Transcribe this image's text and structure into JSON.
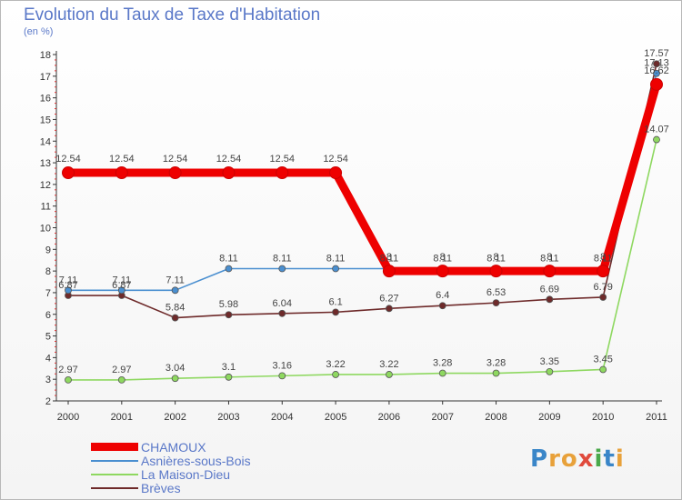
{
  "title": "Evolution du Taux de Taxe d'Habitation",
  "subtitle": "(en %)",
  "logo": {
    "text": "Proxiti",
    "letters": [
      {
        "ch": "P",
        "color": "#3a86c8"
      },
      {
        "ch": "r",
        "color": "#e8a13a"
      },
      {
        "ch": "o",
        "color": "#e8a13a"
      },
      {
        "ch": "x",
        "color": "#e04a3c"
      },
      {
        "ch": "i",
        "color": "#4aa84a"
      },
      {
        "ch": "t",
        "color": "#3a86c8"
      },
      {
        "ch": "i",
        "color": "#e8a13a"
      }
    ]
  },
  "chart_data": {
    "type": "line",
    "x": [
      "2000",
      "2001",
      "2002",
      "2003",
      "2004",
      "2005",
      "2006",
      "2007",
      "2008",
      "2009",
      "2010",
      "2011"
    ],
    "ylim": [
      2,
      18
    ],
    "yticks": [
      2,
      3,
      4,
      5,
      6,
      7,
      8,
      9,
      10,
      11,
      12,
      13,
      14,
      15,
      16,
      17,
      18
    ],
    "grid": false,
    "legend_position": "bottom-left",
    "series": [
      {
        "name": "CHAMOUX",
        "color": "#ee0000",
        "values": [
          12.54,
          12.54,
          12.54,
          12.54,
          12.54,
          12.54,
          8,
          8,
          8,
          8,
          8,
          16.62
        ],
        "labels": [
          "12.54",
          "12.54",
          "12.54",
          "12.54",
          "12.54",
          "12.54",
          "8",
          "8",
          "8",
          "8",
          "8",
          "16.62"
        ]
      },
      {
        "name": "Asnières-sous-Bois",
        "color": "#4a8fd0",
        "values": [
          7.11,
          7.11,
          7.11,
          8.11,
          8.11,
          8.11,
          8.11,
          8.11,
          8.11,
          8.11,
          8.11,
          17.13
        ],
        "labels": [
          "7.11",
          "7.11",
          "7.11",
          "8.11",
          "8.11",
          "8.11",
          "8.11",
          "8.11",
          "8.11",
          "8.11",
          "8.11",
          "17.13"
        ]
      },
      {
        "name": "La Maison-Dieu",
        "color": "#8ed860",
        "values": [
          2.97,
          2.97,
          3.04,
          3.1,
          3.16,
          3.22,
          3.22,
          3.28,
          3.28,
          3.35,
          3.45,
          14.07
        ],
        "labels": [
          "2.97",
          "2.97",
          "3.04",
          "3.1",
          "3.16",
          "3.22",
          "3.22",
          "3.28",
          "3.28",
          "3.35",
          "3.45",
          "14.07"
        ]
      },
      {
        "name": "Brèves",
        "color": "#6e2a2a",
        "values": [
          6.87,
          6.87,
          5.84,
          5.98,
          6.04,
          6.1,
          6.27,
          6.4,
          6.53,
          6.69,
          6.79,
          17.57
        ],
        "labels": [
          "6.87",
          "6.87",
          "5.84",
          "5.98",
          "6.04",
          "6.1",
          "6.27",
          "6.4",
          "6.53",
          "6.69",
          "6.79",
          "17.57"
        ]
      }
    ]
  }
}
